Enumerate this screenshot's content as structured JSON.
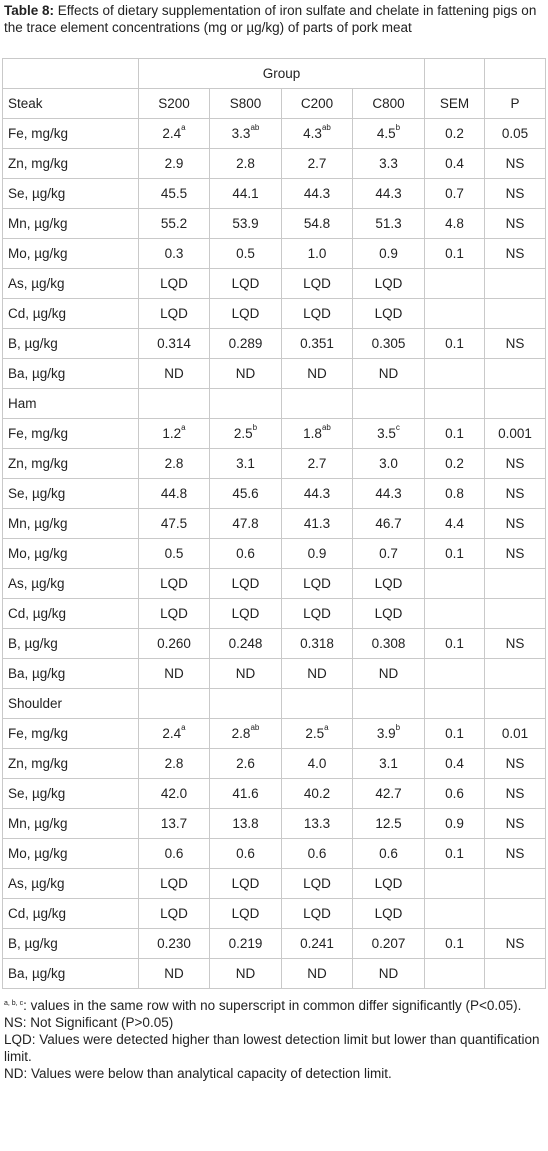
{
  "caption": {
    "label": "Table 8:",
    "text": " Effects of dietary supplementation of iron sulfate and chelate in fattening pigs on the trace element concentrations (mg or µg/kg) of parts of pork meat"
  },
  "table": {
    "group_header": "Group",
    "columns": [
      "S200",
      "S800",
      "C200",
      "C800",
      "SEM",
      "P"
    ],
    "sections": [
      {
        "name": "Steak",
        "rows": [
          {
            "label": "Fe, mg/kg",
            "cells": [
              {
                "v": "2.4",
                "s": "a"
              },
              {
                "v": "3.3",
                "s": "ab"
              },
              {
                "v": "4.3",
                "s": "ab"
              },
              {
                "v": "4.5",
                "s": "b"
              },
              {
                "v": "0.2"
              },
              {
                "v": "0.05"
              }
            ]
          },
          {
            "label": "Zn, mg/kg",
            "cells": [
              {
                "v": "2.9"
              },
              {
                "v": "2.8"
              },
              {
                "v": "2.7"
              },
              {
                "v": "3.3"
              },
              {
                "v": "0.4"
              },
              {
                "v": "NS"
              }
            ]
          },
          {
            "label": "Se, µg/kg",
            "cells": [
              {
                "v": "45.5"
              },
              {
                "v": "44.1"
              },
              {
                "v": "44.3"
              },
              {
                "v": "44.3"
              },
              {
                "v": "0.7"
              },
              {
                "v": "NS"
              }
            ]
          },
          {
            "label": "Mn, µg/kg",
            "cells": [
              {
                "v": "55.2"
              },
              {
                "v": "53.9"
              },
              {
                "v": "54.8"
              },
              {
                "v": "51.3"
              },
              {
                "v": "4.8"
              },
              {
                "v": "NS"
              }
            ]
          },
          {
            "label": "Mo, µg/kg",
            "cells": [
              {
                "v": "0.3"
              },
              {
                "v": "0.5"
              },
              {
                "v": "1.0"
              },
              {
                "v": "0.9"
              },
              {
                "v": "0.1"
              },
              {
                "v": "NS"
              }
            ]
          },
          {
            "label": "As, µg/kg",
            "cells": [
              {
                "v": "LQD"
              },
              {
                "v": "LQD"
              },
              {
                "v": "LQD"
              },
              {
                "v": "LQD"
              },
              {
                "v": ""
              },
              {
                "v": ""
              }
            ]
          },
          {
            "label": "Cd, µg/kg",
            "cells": [
              {
                "v": "LQD"
              },
              {
                "v": "LQD"
              },
              {
                "v": "LQD"
              },
              {
                "v": "LQD"
              },
              {
                "v": ""
              },
              {
                "v": ""
              }
            ]
          },
          {
            "label": "B, µg/kg",
            "cells": [
              {
                "v": "0.314"
              },
              {
                "v": "0.289"
              },
              {
                "v": "0.351"
              },
              {
                "v": "0.305"
              },
              {
                "v": "0.1"
              },
              {
                "v": "NS"
              }
            ]
          },
          {
            "label": "Ba, µg/kg",
            "cells": [
              {
                "v": "ND"
              },
              {
                "v": "ND"
              },
              {
                "v": "ND"
              },
              {
                "v": "ND"
              },
              {
                "v": ""
              },
              {
                "v": ""
              }
            ]
          }
        ]
      },
      {
        "name": "Ham",
        "rows": [
          {
            "label": "Fe, mg/kg",
            "cells": [
              {
                "v": "1.2",
                "s": "a"
              },
              {
                "v": "2.5",
                "s": "b"
              },
              {
                "v": "1.8",
                "s": "ab"
              },
              {
                "v": "3.5",
                "s": "c"
              },
              {
                "v": "0.1"
              },
              {
                "v": "0.001"
              }
            ]
          },
          {
            "label": "Zn, mg/kg",
            "cells": [
              {
                "v": "2.8"
              },
              {
                "v": "3.1"
              },
              {
                "v": "2.7"
              },
              {
                "v": "3.0"
              },
              {
                "v": "0.2"
              },
              {
                "v": "NS"
              }
            ]
          },
          {
            "label": "Se, µg/kg",
            "cells": [
              {
                "v": "44.8"
              },
              {
                "v": "45.6"
              },
              {
                "v": "44.3"
              },
              {
                "v": "44.3"
              },
              {
                "v": "0.8"
              },
              {
                "v": "NS"
              }
            ]
          },
          {
            "label": "Mn, µg/kg",
            "cells": [
              {
                "v": "47.5"
              },
              {
                "v": "47.8"
              },
              {
                "v": "41.3"
              },
              {
                "v": "46.7"
              },
              {
                "v": "4.4"
              },
              {
                "v": "NS"
              }
            ]
          },
          {
            "label": "Mo, µg/kg",
            "cells": [
              {
                "v": "0.5"
              },
              {
                "v": "0.6"
              },
              {
                "v": "0.9"
              },
              {
                "v": "0.7"
              },
              {
                "v": "0.1"
              },
              {
                "v": "NS"
              }
            ]
          },
          {
            "label": "As, µg/kg",
            "cells": [
              {
                "v": "LQD"
              },
              {
                "v": "LQD"
              },
              {
                "v": "LQD"
              },
              {
                "v": "LQD"
              },
              {
                "v": ""
              },
              {
                "v": ""
              }
            ]
          },
          {
            "label": "Cd, µg/kg",
            "cells": [
              {
                "v": "LQD"
              },
              {
                "v": "LQD"
              },
              {
                "v": "LQD"
              },
              {
                "v": "LQD"
              },
              {
                "v": ""
              },
              {
                "v": ""
              }
            ]
          },
          {
            "label": "B, µg/kg",
            "cells": [
              {
                "v": "0.260"
              },
              {
                "v": "0.248"
              },
              {
                "v": "0.318"
              },
              {
                "v": "0.308"
              },
              {
                "v": "0.1"
              },
              {
                "v": "NS"
              }
            ]
          },
          {
            "label": "Ba, µg/kg",
            "cells": [
              {
                "v": "ND"
              },
              {
                "v": "ND"
              },
              {
                "v": "ND"
              },
              {
                "v": "ND"
              },
              {
                "v": ""
              },
              {
                "v": ""
              }
            ]
          }
        ]
      },
      {
        "name": "Shoulder",
        "rows": [
          {
            "label": "Fe, mg/kg",
            "cells": [
              {
                "v": "2.4",
                "s": "a"
              },
              {
                "v": "2.8",
                "s": "ab"
              },
              {
                "v": "2.5",
                "s": "a"
              },
              {
                "v": "3.9",
                "s": "b"
              },
              {
                "v": "0.1"
              },
              {
                "v": "0.01"
              }
            ]
          },
          {
            "label": "Zn, mg/kg",
            "cells": [
              {
                "v": "2.8"
              },
              {
                "v": "2.6"
              },
              {
                "v": "4.0"
              },
              {
                "v": "3.1"
              },
              {
                "v": "0.4"
              },
              {
                "v": "NS"
              }
            ]
          },
          {
            "label": "Se, µg/kg",
            "cells": [
              {
                "v": "42.0"
              },
              {
                "v": "41.6"
              },
              {
                "v": "40.2"
              },
              {
                "v": "42.7"
              },
              {
                "v": "0.6"
              },
              {
                "v": "NS"
              }
            ]
          },
          {
            "label": "Mn, µg/kg",
            "cells": [
              {
                "v": "13.7"
              },
              {
                "v": "13.8"
              },
              {
                "v": "13.3"
              },
              {
                "v": "12.5"
              },
              {
                "v": "0.9"
              },
              {
                "v": "NS"
              }
            ]
          },
          {
            "label": "Mo, µg/kg",
            "cells": [
              {
                "v": "0.6"
              },
              {
                "v": "0.6"
              },
              {
                "v": "0.6"
              },
              {
                "v": "0.6"
              },
              {
                "v": "0.1"
              },
              {
                "v": "NS"
              }
            ]
          },
          {
            "label": "As, µg/kg",
            "cells": [
              {
                "v": "LQD"
              },
              {
                "v": "LQD"
              },
              {
                "v": "LQD"
              },
              {
                "v": "LQD"
              },
              {
                "v": ""
              },
              {
                "v": ""
              }
            ]
          },
          {
            "label": "Cd, µg/kg",
            "cells": [
              {
                "v": "LQD"
              },
              {
                "v": "LQD"
              },
              {
                "v": "LQD"
              },
              {
                "v": "LQD"
              },
              {
                "v": ""
              },
              {
                "v": ""
              }
            ]
          },
          {
            "label": "B, µg/kg",
            "cells": [
              {
                "v": "0.230"
              },
              {
                "v": "0.219"
              },
              {
                "v": "0.241"
              },
              {
                "v": "0.207"
              },
              {
                "v": "0.1"
              },
              {
                "v": "NS"
              }
            ]
          },
          {
            "label": "Ba, µg/kg",
            "cells": [
              {
                "v": "ND"
              },
              {
                "v": "ND"
              },
              {
                "v": "ND"
              },
              {
                "v": "ND"
              },
              {
                "v": ""
              },
              {
                "v": ""
              }
            ]
          }
        ]
      }
    ]
  },
  "notes": {
    "superscript_marks": "a, b, c",
    "superscript_text": ": values in the same row with no superscript in common differ significantly (P<0.05).",
    "ns": "NS: Not Significant (P>0.05)",
    "lqd": "LQD: Values were detected higher than lowest detection limit but lower than quantification limit.",
    "nd": "ND: Values were below than analytical capacity of detection limit."
  }
}
